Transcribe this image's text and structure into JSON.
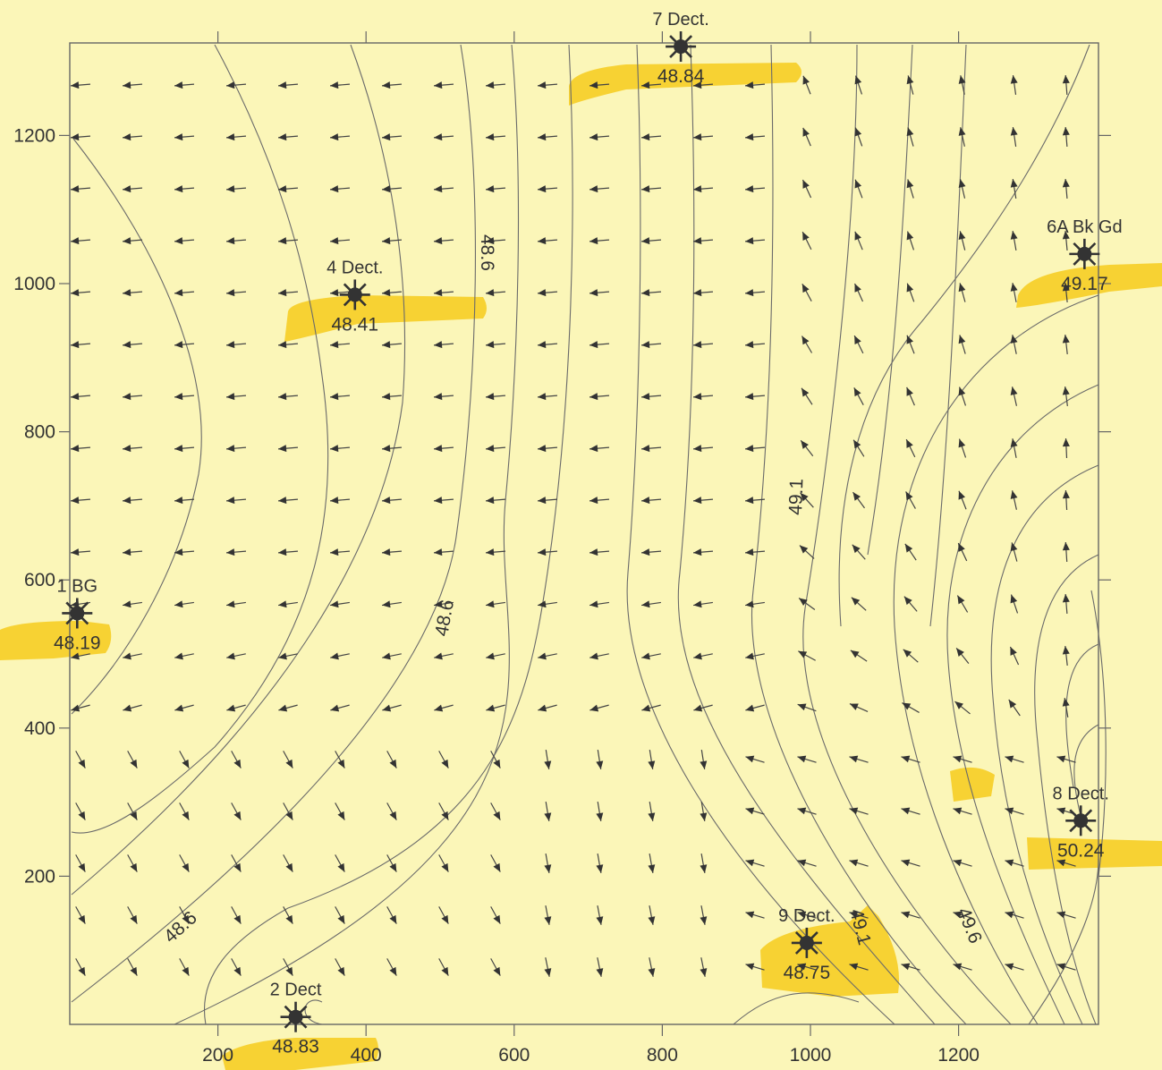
{
  "axes": {
    "x_ticks": [
      "200",
      "400",
      "600",
      "800",
      "1000",
      "1200"
    ],
    "y_ticks": [
      "1200",
      "1000",
      "800",
      "600",
      "400",
      "200"
    ]
  },
  "contour_labels": [
    "48.6",
    "48.6",
    "48.6",
    "49.1",
    "49.1",
    "49.6"
  ],
  "wells": [
    {
      "name": "7 Dect.",
      "value": "48.84",
      "x": 825,
      "y": 1320
    },
    {
      "name": "4 Dect.",
      "value": "48.41",
      "x": 385,
      "y": 985
    },
    {
      "name": "6A Bk Gd",
      "value": "49.17",
      "x": 1370,
      "y": 1040
    },
    {
      "name": "1 BG",
      "value": "48.19",
      "x": 10,
      "y": 555
    },
    {
      "name": "8 Dect.",
      "value": "50.24",
      "x": 1365,
      "y": 275
    },
    {
      "name": "9 Dect.",
      "value": "48.75",
      "x": 995,
      "y": 110
    },
    {
      "name": "2 Dect",
      "value": "48.83",
      "x": 305,
      "y": 10
    }
  ],
  "colors": {
    "background": "#fbf6b8",
    "highlight": "#f5c400",
    "ink": "#333333"
  },
  "icons": {
    "well": "well-marker-icon",
    "flow": "flow-arrow-icon"
  }
}
